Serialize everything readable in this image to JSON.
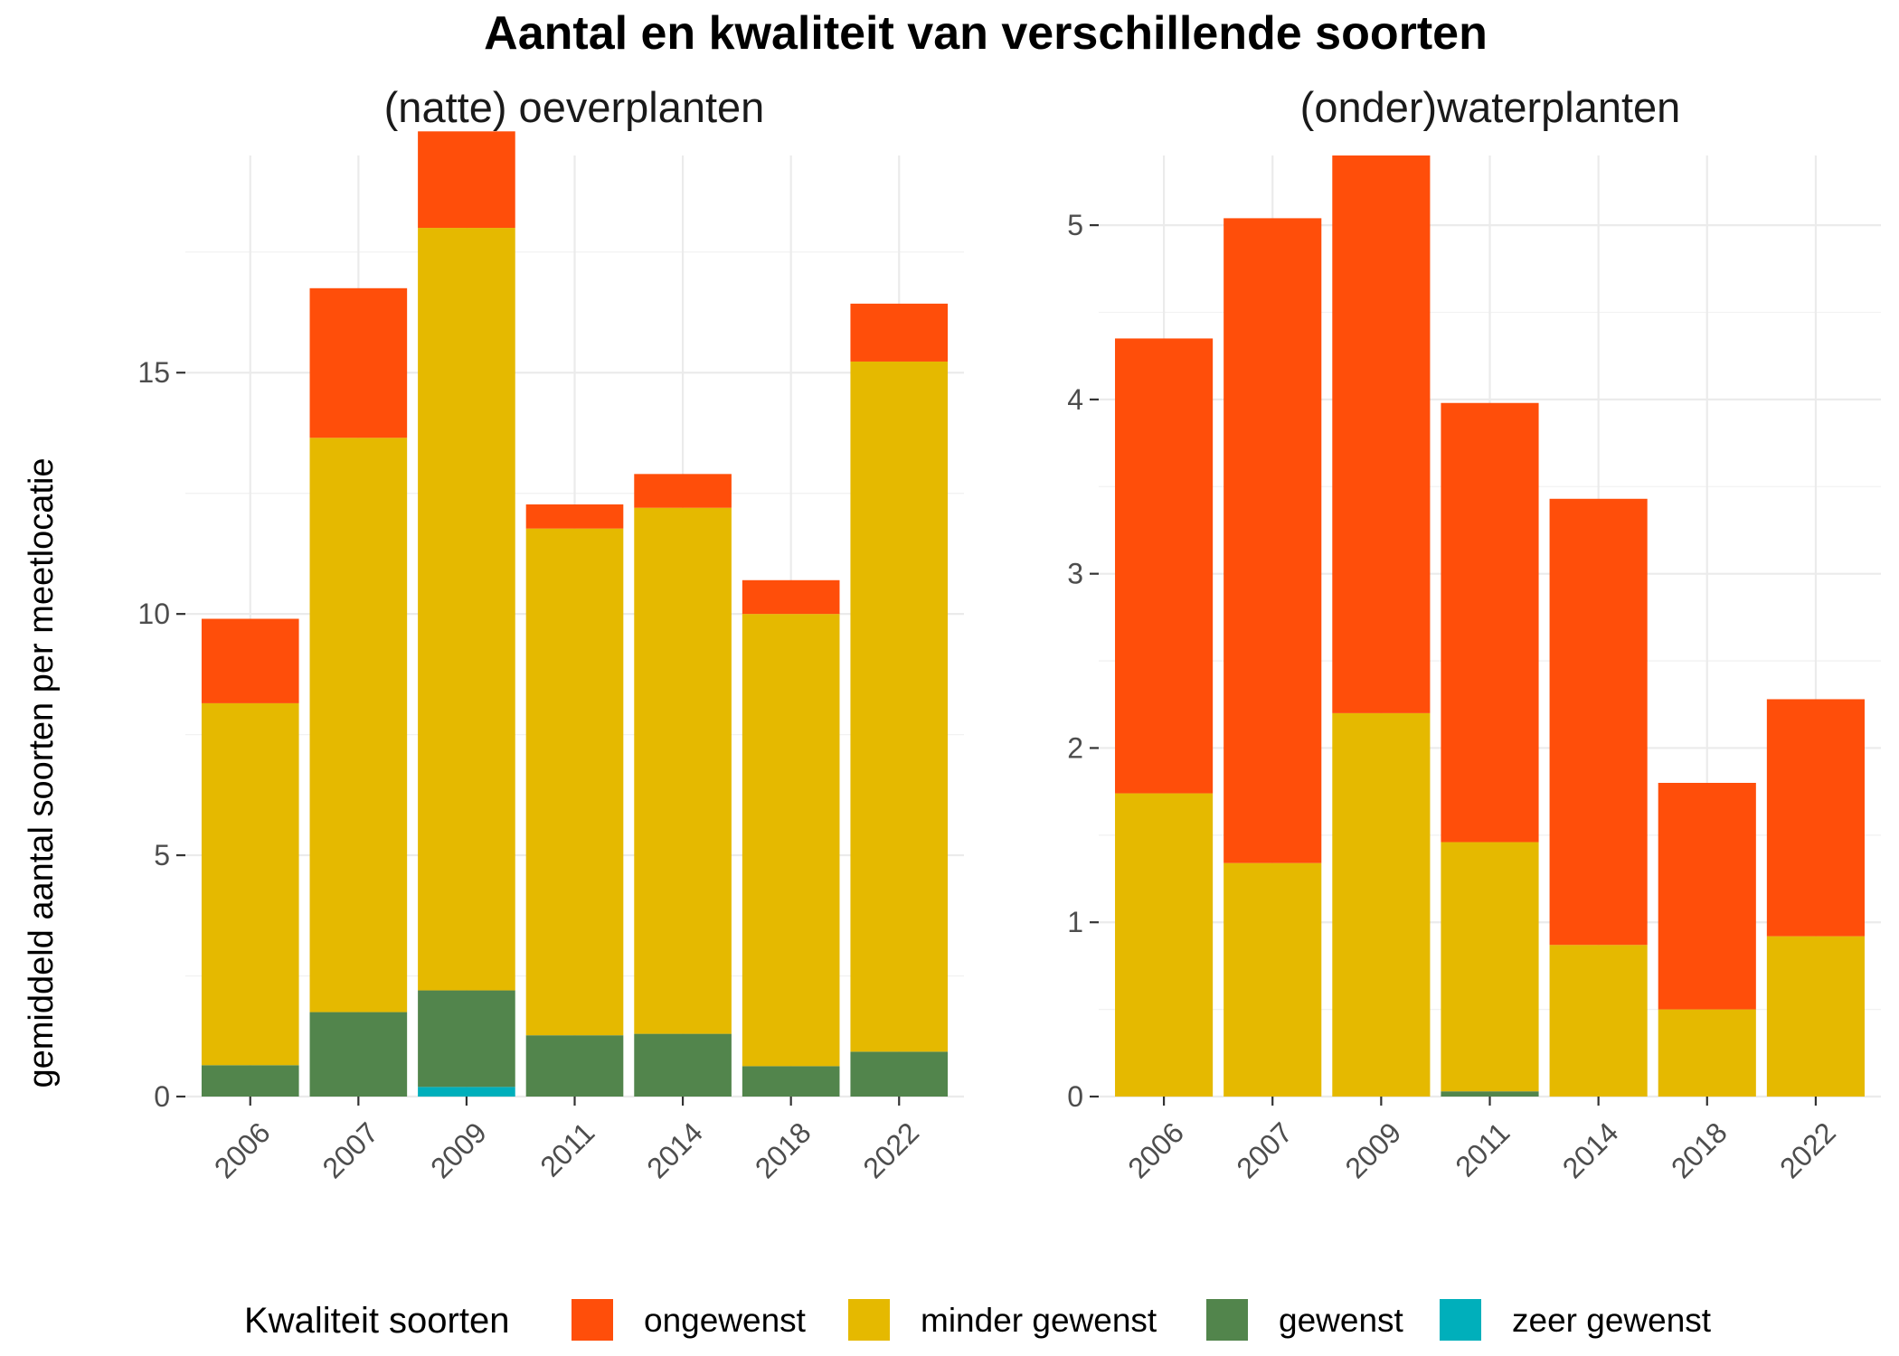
{
  "chart_title": "Aantal en kwaliteit van verschillende soorten",
  "legend": {
    "title": "Kwaliteit soorten",
    "items": [
      {
        "label": "ongewenst",
        "color": "#FF4E0A"
      },
      {
        "label": "minder gewenst",
        "color": "#E5B900"
      },
      {
        "label": "gewenst",
        "color": "#52854C"
      },
      {
        "label": "zeer gewenst",
        "color": "#00AFBB"
      }
    ]
  },
  "chart_data": [
    {
      "type": "bar",
      "stacked": true,
      "title": "(natte) oeverplanten",
      "xlabel": "",
      "ylabel": "gemiddeld aantal soorten per meetlocatie",
      "categories": [
        "2006",
        "2007",
        "2009",
        "2011",
        "2014",
        "2018",
        "2022"
      ],
      "ylim": [
        0,
        19.5
      ],
      "yticks": [
        0,
        5,
        10,
        15
      ],
      "series": [
        {
          "name": "zeer gewenst",
          "color": "#00AFBB",
          "values": [
            0,
            0,
            0.2,
            0,
            0,
            0,
            0
          ]
        },
        {
          "name": "gewenst",
          "color": "#52854C",
          "values": [
            0.65,
            1.75,
            2.0,
            1.27,
            1.3,
            0.63,
            0.93
          ]
        },
        {
          "name": "minder gewenst",
          "color": "#E5B900",
          "values": [
            7.5,
            11.9,
            15.8,
            10.5,
            10.9,
            9.37,
            14.3
          ]
        },
        {
          "name": "ongewenst",
          "color": "#FF4E0A",
          "values": [
            1.75,
            3.1,
            2.0,
            0.5,
            0.7,
            0.7,
            1.2
          ]
        }
      ],
      "grid": true,
      "legend_position": "bottom"
    },
    {
      "type": "bar",
      "stacked": true,
      "title": "(onder)waterplanten",
      "xlabel": "",
      "ylabel": "",
      "categories": [
        "2006",
        "2007",
        "2009",
        "2011",
        "2014",
        "2018",
        "2022"
      ],
      "ylim": [
        0,
        5.4
      ],
      "yticks": [
        0,
        1,
        2,
        3,
        4,
        5
      ],
      "series": [
        {
          "name": "zeer gewenst",
          "color": "#00AFBB",
          "values": [
            0,
            0,
            0,
            0,
            0,
            0,
            0
          ]
        },
        {
          "name": "gewenst",
          "color": "#52854C",
          "values": [
            0,
            0,
            0,
            0.03,
            0,
            0,
            0
          ]
        },
        {
          "name": "minder gewenst",
          "color": "#E5B900",
          "values": [
            1.74,
            1.34,
            2.2,
            1.43,
            0.87,
            0.5,
            0.92
          ]
        },
        {
          "name": "ongewenst",
          "color": "#FF4E0A",
          "values": [
            2.61,
            3.7,
            3.2,
            2.52,
            2.56,
            1.3,
            1.36
          ]
        }
      ],
      "grid": true,
      "legend_position": "bottom"
    }
  ]
}
